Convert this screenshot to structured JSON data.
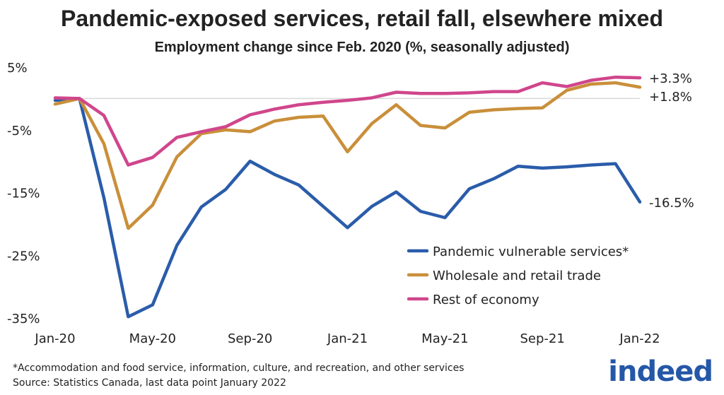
{
  "title": "Pandemic-exposed services, retail fall, elsewhere mixed",
  "subtitle": "Employment change since Feb. 2020 (%, seasonally adjusted)",
  "footnote": "*Accommodation and food service, information, culture, and recreation, and other services",
  "source": "Source: Statistics Canada, last data point January 2022",
  "logo_text": "indeed",
  "chart_data": {
    "type": "line",
    "title": "Employment change since Feb. 2020 (%, seasonally adjusted)",
    "xlabel": "",
    "ylabel": "",
    "ylim": [
      -35,
      5
    ],
    "yticks": [
      5,
      -5,
      -15,
      -25,
      -35
    ],
    "ytick_labels": [
      "5%",
      "-5%",
      "-15%",
      "-25%",
      "-35%"
    ],
    "x": [
      "Jan-20",
      "Feb-20",
      "Mar-20",
      "Apr-20",
      "May-20",
      "Jun-20",
      "Jul-20",
      "Aug-20",
      "Sep-20",
      "Oct-20",
      "Nov-20",
      "Dec-20",
      "Jan-21",
      "Feb-21",
      "Mar-21",
      "Apr-21",
      "May-21",
      "Jun-21",
      "Jul-21",
      "Aug-21",
      "Sep-21",
      "Oct-21",
      "Nov-21",
      "Dec-21",
      "Jan-22"
    ],
    "xtick_labels": [
      "Jan-20",
      "May-20",
      "Sep-20",
      "Jan-21",
      "May-21",
      "Sep-21",
      "Jan-22"
    ],
    "grid": false,
    "zero_line": true,
    "legend_position": "bottom-right",
    "series": [
      {
        "name": "Pandemic vulnerable services*",
        "color": "#2a5caa",
        "end_label": "-16.5%",
        "values": [
          -0.3,
          0,
          -15.8,
          -34.8,
          -32.9,
          -23.4,
          -17.3,
          -14.5,
          -10.0,
          -12.1,
          -13.8,
          -17.2,
          -20.6,
          -17.2,
          -14.9,
          -18.0,
          -19.0,
          -14.4,
          -12.8,
          -10.8,
          -11.1,
          -10.9,
          -10.6,
          -10.4,
          -16.5
        ]
      },
      {
        "name": "Wholesale and retail trade",
        "color": "#c98f3a",
        "end_label": "+1.8%",
        "values": [
          -0.9,
          0,
          -7.2,
          -20.7,
          -17.0,
          -9.3,
          -5.6,
          -5.0,
          -5.3,
          -3.6,
          -3.0,
          -2.8,
          -8.5,
          -4.0,
          -1.0,
          -4.3,
          -4.7,
          -2.2,
          -1.8,
          -1.6,
          -1.5,
          1.3,
          2.3,
          2.5,
          1.8
        ]
      },
      {
        "name": "Rest of economy",
        "color": "#d0468c",
        "end_label": "+3.3%",
        "values": [
          0.1,
          0,
          -2.7,
          -10.6,
          -9.4,
          -6.2,
          -5.3,
          -4.5,
          -2.6,
          -1.7,
          -1.0,
          -0.6,
          -0.3,
          0.1,
          1.0,
          0.8,
          0.8,
          0.9,
          1.1,
          1.1,
          2.5,
          1.9,
          2.9,
          3.4,
          3.3
        ]
      }
    ]
  }
}
